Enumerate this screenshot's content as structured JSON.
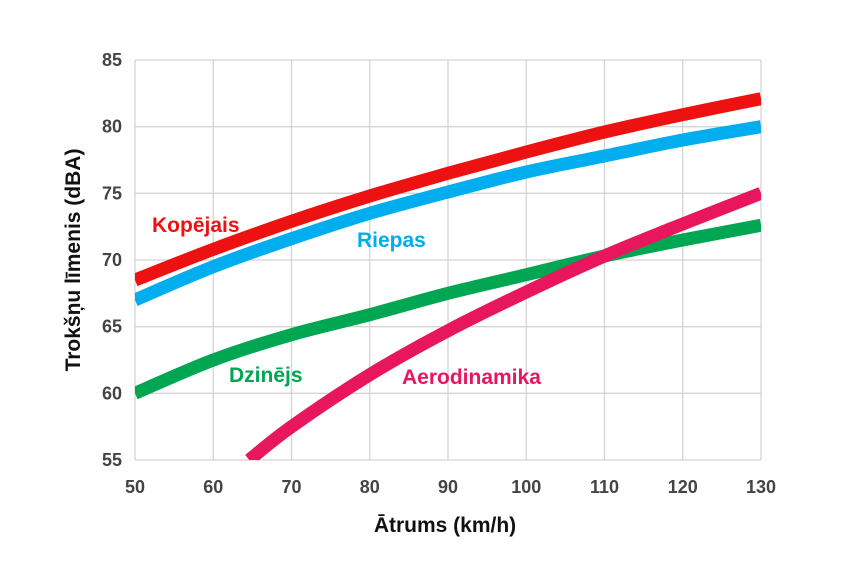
{
  "chart_data": {
    "type": "line",
    "xlabel": "Ātrums (km/h)",
    "ylabel": "Trokšņu līmenis (dBA)",
    "xlim": [
      50,
      130
    ],
    "ylim": [
      55,
      85
    ],
    "xticks": [
      50,
      60,
      70,
      80,
      90,
      100,
      110,
      120,
      130
    ],
    "yticks": [
      55,
      60,
      65,
      70,
      75,
      80,
      85
    ],
    "grid": true,
    "legend": "none (inline labels)",
    "series": [
      {
        "name": "Kopējais",
        "color": "#ee1111",
        "x": [
          50,
          60,
          70,
          80,
          90,
          100,
          110,
          120,
          130
        ],
        "y": [
          68.5,
          70.8,
          72.9,
          74.8,
          76.5,
          78.1,
          79.6,
          80.9,
          82.1
        ]
      },
      {
        "name": "Riepas",
        "color": "#00aeef",
        "x": [
          50,
          60,
          70,
          80,
          90,
          100,
          110,
          120,
          130
        ],
        "y": [
          67.0,
          69.5,
          71.6,
          73.5,
          75.1,
          76.6,
          77.8,
          79.0,
          80.0
        ]
      },
      {
        "name": "Dzinējs",
        "color": "#00a651",
        "x": [
          50,
          60,
          70,
          80,
          90,
          100,
          110,
          120,
          130
        ],
        "y": [
          60.0,
          62.5,
          64.4,
          65.9,
          67.5,
          68.9,
          70.3,
          71.5,
          72.6
        ]
      },
      {
        "name": "Aerodinamika",
        "color": "#e8175d",
        "x": [
          64.6,
          70,
          80,
          90,
          100,
          110,
          120,
          130
        ],
        "y": [
          55.0,
          57.5,
          61.4,
          64.7,
          67.6,
          70.3,
          72.7,
          75.0
        ]
      }
    ]
  }
}
